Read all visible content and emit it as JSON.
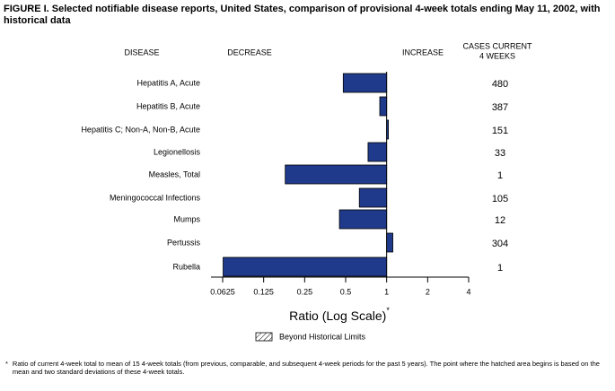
{
  "chart_data": {
    "type": "bar",
    "orientation": "horizontal",
    "title": "FIGURE I. Selected notifiable disease reports, United States, comparison of provisional 4-week totals ending May 11, 2002, with historical data",
    "headers": {
      "disease": "DISEASE",
      "decrease": "DECREASE",
      "increase": "INCREASE",
      "cases": [
        "CASES CURRENT",
        "4 WEEKS"
      ]
    },
    "categories": [
      "Hepatitis A, Acute",
      "Hepatitis B, Acute",
      "Hepatitis C; Non-A, Non-B, Acute",
      "Legionellosis",
      "Measles, Total",
      "Meningococcal Infections",
      "Mumps",
      "Pertussis",
      "Rubella"
    ],
    "values": [
      0.48,
      0.89,
      1.03,
      0.73,
      0.18,
      0.63,
      0.45,
      1.11,
      0.063
    ],
    "cases": [
      480,
      387,
      151,
      33,
      1,
      105,
      12,
      304,
      1
    ],
    "color": "#1f3a8a",
    "log_scale": true,
    "baseline": 1,
    "xlim": [
      0.0625,
      4
    ],
    "xticks": [
      0.0625,
      0.125,
      0.25,
      0.5,
      1,
      2,
      4
    ],
    "xlabel": "Ratio (Log Scale)",
    "xlabel_marker": "*",
    "legend": {
      "label": "Beyond Historical Limits"
    },
    "footnote": {
      "marker": "*",
      "text": "Ratio of current 4-week total to mean of 15 4-week totals (from previous, comparable, and subsequent 4-week periods for the past 5 years). The point where the hatched area begins is based on the mean and two standard deviations of these 4-week totals."
    }
  }
}
